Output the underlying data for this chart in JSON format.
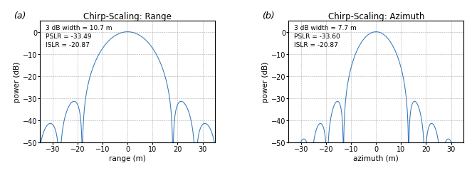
{
  "title_range": "Chirp-Scaling: Range",
  "title_azimuth": "Chirp-Scaling: Azimuth",
  "xlabel_range": "range (m)",
  "xlabel_azimuth": "azimuth (m)",
  "ylabel": "power (dB)",
  "xlim": [
    -35,
    35
  ],
  "ylim": [
    -50,
    5
  ],
  "xticks": [
    -30,
    -20,
    -10,
    0,
    10,
    20,
    30
  ],
  "yticks": [
    -50,
    -40,
    -30,
    -20,
    -10,
    0
  ],
  "annotation_range": "3 dB width = 10.7 m\nPSLR = -33.49\nISLR = -20.87",
  "annotation_azimuth": "3 dB width = 7.7 m\nPSLR = -33.60\nISLR = -20.87",
  "line_color": "#3377bb",
  "label_a": "(a)",
  "label_b": "(b)",
  "range_3db_half": 5.35,
  "azimuth_3db_half": 3.85,
  "background_color": "#ffffff",
  "grid_color": "#999999",
  "title_fontsize": 8.5,
  "label_fontsize": 7.5,
  "tick_fontsize": 7,
  "annot_fontsize": 6.5
}
